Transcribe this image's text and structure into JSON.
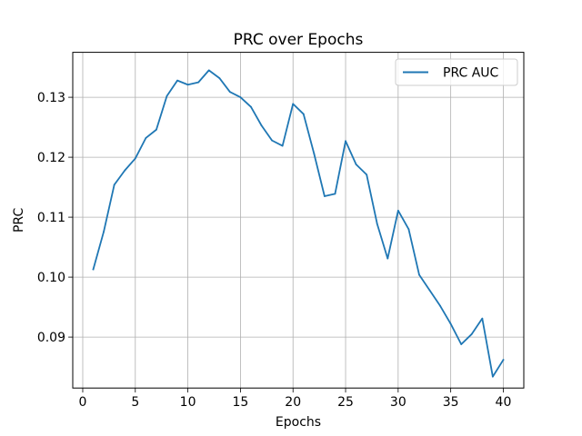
{
  "chart_data": {
    "type": "line",
    "title": "PRC over Epochs",
    "xlabel": "Epochs",
    "ylabel": "PRC",
    "xlim": [
      -0.95,
      41.95
    ],
    "ylim": [
      0.0815,
      0.1375
    ],
    "xticks": [
      0,
      5,
      10,
      15,
      20,
      25,
      30,
      35,
      40
    ],
    "yticks": [
      0.09,
      0.1,
      0.11,
      0.12,
      0.13
    ],
    "ytick_labels": [
      "0.09",
      "0.10",
      "0.11",
      "0.12",
      "0.13"
    ],
    "grid": true,
    "legend_position": "top-right",
    "series": [
      {
        "name": "PRC AUC",
        "color": "#1f77b4",
        "x": [
          1,
          2,
          3,
          4,
          5,
          6,
          7,
          8,
          9,
          10,
          11,
          12,
          13,
          14,
          15,
          16,
          17,
          18,
          19,
          20,
          21,
          22,
          23,
          24,
          25,
          26,
          27,
          28,
          29,
          30,
          31,
          32,
          33,
          34,
          35,
          36,
          37,
          38,
          39,
          40
        ],
        "values": [
          0.1013,
          0.1076,
          0.1154,
          0.1178,
          0.1198,
          0.1232,
          0.1246,
          0.1302,
          0.1328,
          0.1321,
          0.1325,
          0.1345,
          0.1332,
          0.1309,
          0.13,
          0.1284,
          0.1253,
          0.1228,
          0.1219,
          0.1289,
          0.1272,
          0.1206,
          0.1135,
          0.1139,
          0.1227,
          0.1188,
          0.1171,
          0.1089,
          0.1031,
          0.1111,
          0.108,
          0.1004,
          0.0978,
          0.0952,
          0.0922,
          0.0888,
          0.0905,
          0.0931,
          0.0834,
          0.0862
        ]
      }
    ]
  }
}
